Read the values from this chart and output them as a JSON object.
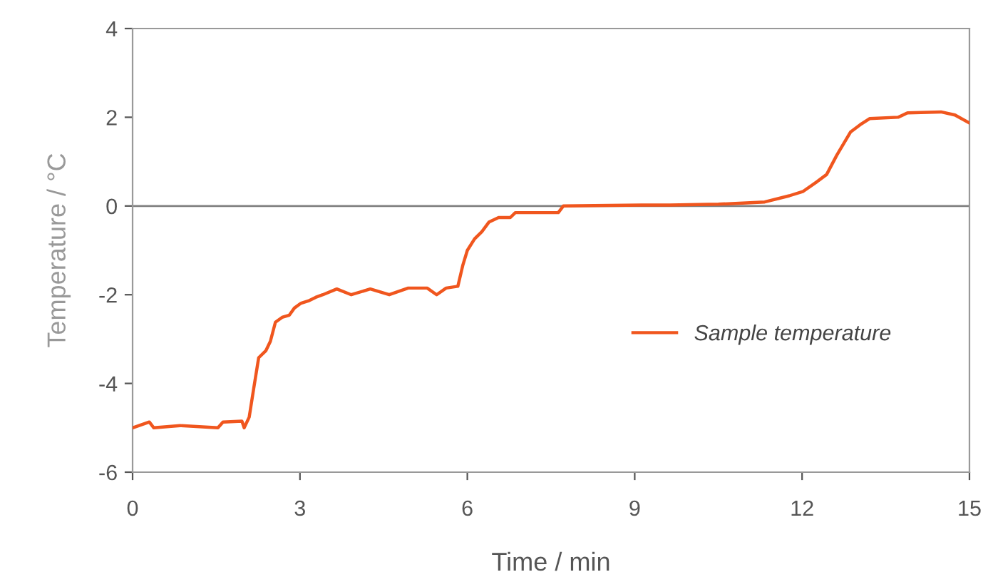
{
  "chart_data": {
    "type": "line",
    "xlabel": "Time / min",
    "ylabel": "Temperature / °C",
    "xlim": [
      0,
      15
    ],
    "ylim": [
      -6,
      4
    ],
    "xticks": [
      0,
      3,
      6,
      9,
      12,
      15
    ],
    "yticks": [
      -6,
      -4,
      -2,
      0,
      2,
      4
    ],
    "grid": false,
    "legend": "center right",
    "marker": "none",
    "line_style": "solid",
    "ref_lines": [
      {
        "axis": "y",
        "value": 0,
        "color": "#808080"
      }
    ],
    "series": [
      {
        "name": "Sample temperature",
        "color": "#f0561e",
        "x": [
          0,
          0.3,
          0.38,
          0.85,
          1.53,
          1.62,
          1.96,
          2.0,
          2.09,
          2.17,
          2.26,
          2.39,
          2.47,
          2.56,
          2.68,
          2.81,
          2.9,
          3.02,
          3.15,
          3.28,
          3.41,
          3.66,
          3.92,
          4.26,
          4.6,
          4.94,
          5.28,
          5.45,
          5.62,
          5.83,
          5.92,
          6.0,
          6.13,
          6.26,
          6.39,
          6.56,
          6.77,
          6.86,
          7.63,
          7.72,
          9.12,
          9.63,
          10.5,
          11.33,
          11.77,
          12.02,
          12.27,
          12.44,
          12.62,
          12.87,
          13.04,
          13.21,
          13.72,
          13.89,
          14.49,
          14.74,
          15.0
        ],
        "values": [
          -5.0,
          -4.87,
          -5.0,
          -4.95,
          -5.0,
          -4.87,
          -4.85,
          -5.0,
          -4.76,
          -4.12,
          -3.42,
          -3.26,
          -3.05,
          -2.62,
          -2.51,
          -2.46,
          -2.3,
          -2.19,
          -2.14,
          -2.06,
          -2.0,
          -1.87,
          -2.0,
          -1.87,
          -2.0,
          -1.85,
          -1.85,
          -2.0,
          -1.85,
          -1.81,
          -1.33,
          -1.0,
          -0.74,
          -0.58,
          -0.36,
          -0.26,
          -0.26,
          -0.15,
          -0.15,
          0.0,
          0.02,
          0.02,
          0.04,
          0.09,
          0.23,
          0.33,
          0.55,
          0.71,
          1.14,
          1.67,
          1.83,
          1.97,
          2.0,
          2.1,
          2.12,
          2.05,
          1.87
        ]
      }
    ]
  }
}
